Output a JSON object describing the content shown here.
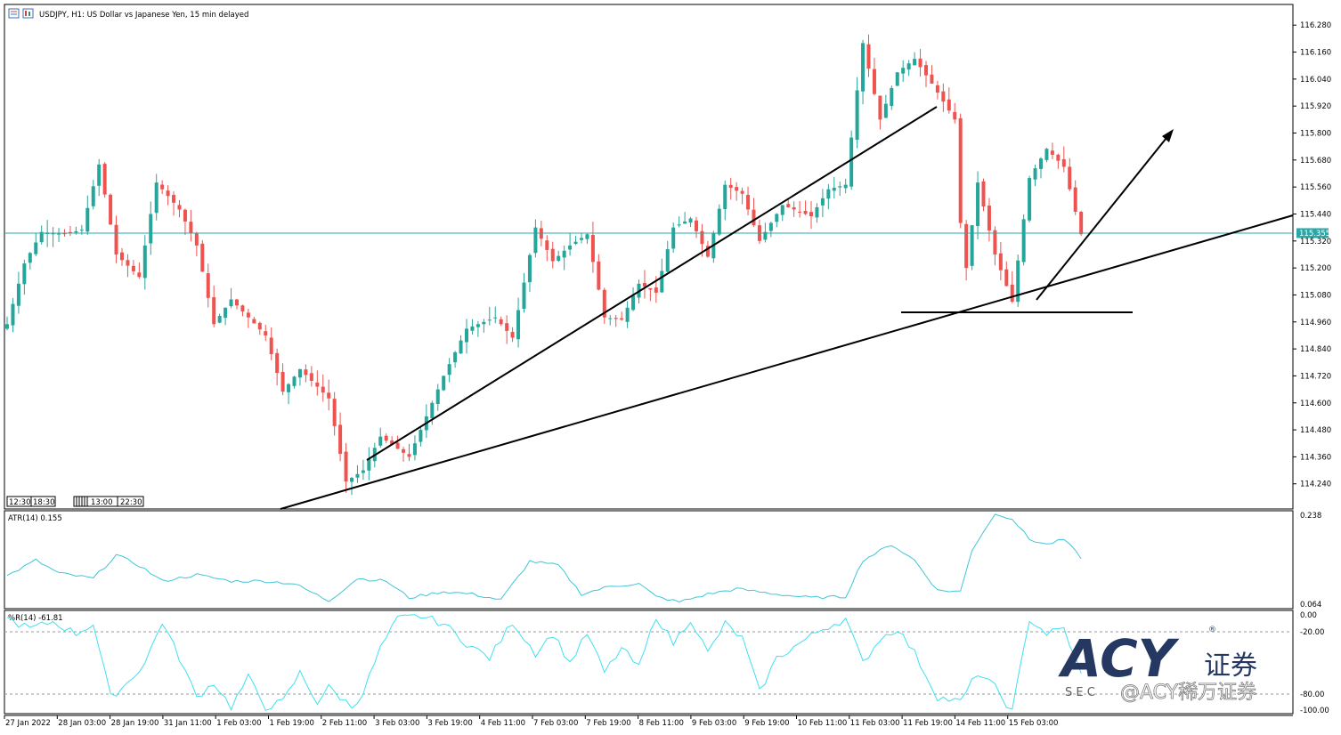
{
  "header": {
    "title": "USDJPY, H1:  US Dollar vs Japanese Yen, 15 min delayed"
  },
  "price_panel": {
    "current_price_label": "115.355",
    "axis_ticks": [
      "116.280",
      "116.160",
      "116.040",
      "115.920",
      "115.800",
      "115.680",
      "115.560",
      "115.440",
      "115.320",
      "115.200",
      "115.080",
      "114.960",
      "114.840",
      "114.720",
      "114.600",
      "114.480",
      "114.360",
      "114.240"
    ],
    "time_markers": [
      "12:30",
      "18:30",
      "13:00",
      "22:30"
    ]
  },
  "atr_panel": {
    "label": "ATR(14) 0.155",
    "axis_ticks": [
      "0.238",
      "0.064"
    ]
  },
  "wpr_panel": {
    "label": "%R(14) -61.81",
    "axis_ticks": [
      "0.00",
      "-20.00",
      "-80.00",
      "-100.00"
    ]
  },
  "time_axis": {
    "labels": [
      "27 Jan 2022",
      "28 Jan 03:00",
      "28 Jan 19:00",
      "31 Jan 11:00",
      "1 Feb 03:00",
      "1 Feb 19:00",
      "2 Feb 11:00",
      "3 Feb 03:00",
      "3 Feb 19:00",
      "4 Feb 11:00",
      "7 Feb 03:00",
      "7 Feb 19:00",
      "8 Feb 11:00",
      "9 Feb 03:00",
      "9 Feb 19:00",
      "10 Feb 11:00",
      "11 Feb 03:00",
      "11 Feb 19:00",
      "14 Feb 11:00",
      "15 Feb 03:00"
    ]
  },
  "watermark": {
    "brand": "ACY",
    "cn": "证券",
    "sub": "S E C",
    "handle": "@ACY稀万证券",
    "registered": "®"
  },
  "colors": {
    "bull": "#26a69a",
    "bear": "#ef5350",
    "indicator": "#3fc5d8",
    "price_line": "#2aa8a8",
    "annotation": "#000000"
  },
  "chart_data": [
    {
      "type": "candlestick",
      "title": "USDJPY, H1:  US Dollar vs Japanese Yen, 15 min delayed",
      "ylim": [
        114.14,
        116.36
      ],
      "current_price": 115.355,
      "anchors": [
        [
          0,
          114.95
        ],
        [
          3,
          115.22
        ],
        [
          6,
          115.36
        ],
        [
          10,
          115.35
        ],
        [
          13,
          115.37
        ],
        [
          16,
          115.66
        ],
        [
          19,
          115.26
        ],
        [
          23,
          115.16
        ],
        [
          26,
          115.58
        ],
        [
          30,
          115.46
        ],
        [
          33,
          115.3
        ],
        [
          36,
          114.95
        ],
        [
          39,
          115.06
        ],
        [
          45,
          114.9
        ],
        [
          48,
          114.65
        ],
        [
          51,
          114.75
        ],
        [
          56,
          114.62
        ],
        [
          59,
          114.25
        ],
        [
          62,
          114.3
        ],
        [
          65,
          114.45
        ],
        [
          70,
          114.36
        ],
        [
          76,
          114.72
        ],
        [
          80,
          114.93
        ],
        [
          85,
          114.98
        ],
        [
          88,
          114.89
        ],
        [
          92,
          115.38
        ],
        [
          95,
          115.23
        ],
        [
          98,
          115.3
        ],
        [
          101,
          115.35
        ],
        [
          104,
          114.98
        ],
        [
          107,
          114.97
        ],
        [
          110,
          115.13
        ],
        [
          113,
          115.09
        ],
        [
          116,
          115.38
        ],
        [
          119,
          115.42
        ],
        [
          122,
          115.25
        ],
        [
          125,
          115.57
        ],
        [
          128,
          115.53
        ],
        [
          131,
          115.32
        ],
        [
          135,
          115.48
        ],
        [
          140,
          115.43
        ],
        [
          143,
          115.55
        ],
        [
          146,
          115.57
        ],
        [
          149,
          116.2
        ],
        [
          152,
          115.86
        ],
        [
          155,
          116.07
        ],
        [
          158,
          116.13
        ],
        [
          161,
          116.02
        ],
        [
          165,
          115.86
        ],
        [
          166,
          115.4
        ],
        [
          167,
          115.2
        ],
        [
          169,
          115.58
        ],
        [
          172,
          115.26
        ],
        [
          175,
          115.05
        ],
        [
          178,
          115.6
        ],
        [
          181,
          115.73
        ],
        [
          184,
          115.65
        ],
        [
          187,
          115.35
        ]
      ],
      "annotations": {
        "support_level": 115.0,
        "trendlines": "two rising support lines, one horizontal support, projected upward arrow"
      }
    },
    {
      "type": "line",
      "title": "ATR(14) 0.155",
      "ylim": [
        0.064,
        0.238
      ],
      "anchors": [
        [
          0,
          0.12
        ],
        [
          5,
          0.15
        ],
        [
          9,
          0.125
        ],
        [
          15,
          0.115
        ],
        [
          19,
          0.16
        ],
        [
          23,
          0.14
        ],
        [
          27,
          0.11
        ],
        [
          33,
          0.122
        ],
        [
          39,
          0.11
        ],
        [
          45,
          0.11
        ],
        [
          50,
          0.105
        ],
        [
          56,
          0.072
        ],
        [
          61,
          0.115
        ],
        [
          66,
          0.11
        ],
        [
          70,
          0.078
        ],
        [
          76,
          0.09
        ],
        [
          81,
          0.085
        ],
        [
          86,
          0.074
        ],
        [
          91,
          0.148
        ],
        [
          96,
          0.14
        ],
        [
          100,
          0.085
        ],
        [
          105,
          0.1
        ],
        [
          110,
          0.105
        ],
        [
          113,
          0.08
        ],
        [
          117,
          0.07
        ],
        [
          122,
          0.085
        ],
        [
          127,
          0.095
        ],
        [
          134,
          0.085
        ],
        [
          140,
          0.078
        ],
        [
          146,
          0.08
        ],
        [
          149,
          0.15
        ],
        [
          154,
          0.18
        ],
        [
          158,
          0.15
        ],
        [
          162,
          0.092
        ],
        [
          166,
          0.09
        ],
        [
          168,
          0.17
        ],
        [
          172,
          0.24
        ],
        [
          175,
          0.23
        ],
        [
          178,
          0.19
        ],
        [
          181,
          0.18
        ],
        [
          184,
          0.19
        ],
        [
          187,
          0.155
        ]
      ]
    },
    {
      "type": "line",
      "title": "%R(14) -61.81",
      "ylim": [
        -100,
        0
      ],
      "anchors": [
        [
          0,
          -5
        ],
        [
          4,
          -15
        ],
        [
          8,
          -8
        ],
        [
          12,
          -20
        ],
        [
          15,
          -10
        ],
        [
          18,
          -85
        ],
        [
          21,
          -70
        ],
        [
          24,
          -50
        ],
        [
          27,
          -8
        ],
        [
          30,
          -45
        ],
        [
          33,
          -85
        ],
        [
          36,
          -70
        ],
        [
          39,
          -95
        ],
        [
          42,
          -65
        ],
        [
          45,
          -95
        ],
        [
          48,
          -90
        ],
        [
          51,
          -60
        ],
        [
          54,
          -90
        ],
        [
          56,
          -75
        ],
        [
          58,
          -85
        ],
        [
          60,
          -95
        ],
        [
          62,
          -80
        ],
        [
          65,
          -35
        ],
        [
          68,
          -5
        ],
        [
          72,
          -2
        ],
        [
          76,
          -10
        ],
        [
          80,
          -30
        ],
        [
          84,
          -45
        ],
        [
          88,
          -8
        ],
        [
          92,
          -40
        ],
        [
          95,
          -20
        ],
        [
          98,
          -50
        ],
        [
          101,
          -20
        ],
        [
          104,
          -60
        ],
        [
          107,
          -35
        ],
        [
          110,
          -55
        ],
        [
          113,
          -2
        ],
        [
          116,
          -30
        ],
        [
          119,
          -5
        ],
        [
          122,
          -40
        ],
        [
          125,
          -10
        ],
        [
          128,
          -25
        ],
        [
          131,
          -80
        ],
        [
          134,
          -45
        ],
        [
          138,
          -30
        ],
        [
          142,
          -15
        ],
        [
          146,
          -5
        ],
        [
          149,
          -50
        ],
        [
          152,
          -25
        ],
        [
          155,
          -15
        ],
        [
          158,
          -40
        ],
        [
          162,
          -85
        ],
        [
          166,
          -90
        ],
        [
          169,
          -60
        ],
        [
          172,
          -75
        ],
        [
          175,
          -100
        ],
        [
          178,
          -5
        ],
        [
          181,
          -20
        ],
        [
          184,
          -15
        ],
        [
          187,
          -62
        ]
      ]
    }
  ]
}
